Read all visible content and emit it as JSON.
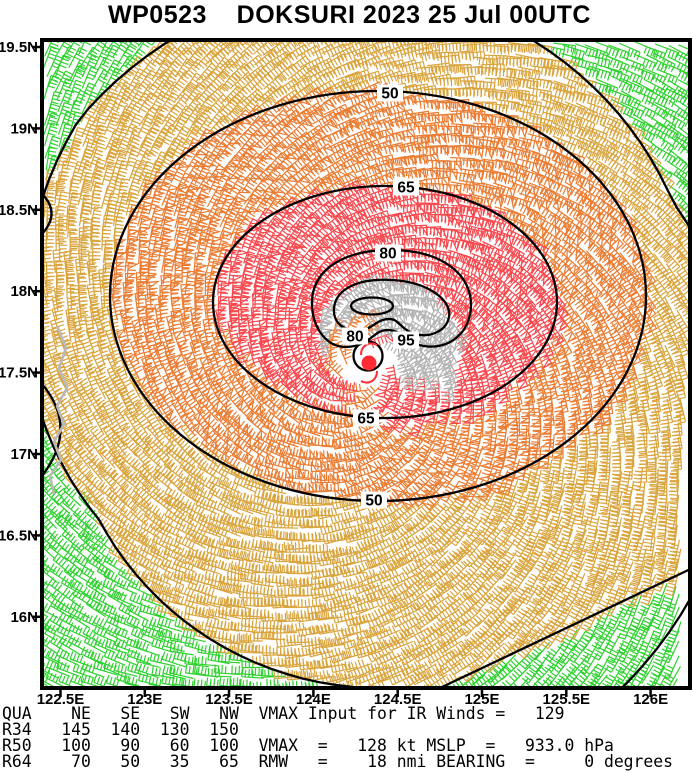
{
  "title": "WP0523    DOKSURI 2023 25 Jul 00UTC",
  "info_lines": [
    "QUA    NE   SE   SW   NW  VMAX Input for IR Winds =   129",
    "R34   145  140  130  150",
    "R50   100   90   60  100  VMAX  =   128 kt MSLP  =   933.0 hPa",
    "R64    70   50   35   65  RMW   =    18 nmi BEARING  =     0 degrees"
  ],
  "axes": {
    "lat_labels": [
      "19.5N",
      "19N",
      "18.5N",
      "18N",
      "17.5N",
      "17N",
      "16.5N",
      "16N"
    ],
    "lon_labels": [
      "122.5E",
      "123E",
      "123.5E",
      "124E",
      "124.5E",
      "125E",
      "125.5E",
      "126E"
    ]
  },
  "chart_data": {
    "type": "wind-barb-isotach-analysis-map",
    "storm": {
      "id": "WP0523",
      "name": "DOKSURI",
      "valid": "2023 25 Jul 00UTC"
    },
    "center": {
      "lat": "17.55N",
      "lon": "124.35E"
    },
    "isotach_contours_kt": [
      50,
      65,
      80,
      95
    ],
    "contour_labels": [
      "50",
      "65",
      "80",
      "80",
      "95",
      "65",
      "50"
    ],
    "wind_radii_nmi": {
      "quadrants": [
        "NE",
        "SE",
        "SW",
        "NW"
      ],
      "R34": [
        145,
        140,
        130,
        150
      ],
      "R50": [
        100,
        90,
        60,
        100
      ],
      "R64": [
        70,
        50,
        35,
        65
      ]
    },
    "vmax_input_ir_kt": 129,
    "vmax_kt": 128,
    "mslp_hpa": 933.0,
    "rmw_nmi": 18,
    "bearing_deg": 0,
    "wind_speed_classes": [
      {
        "color_name": "green",
        "hex": "#2fd12f",
        "range_kt": "< 35"
      },
      {
        "color_name": "gold",
        "hex": "#d9a43c",
        "range_kt": "35-50"
      },
      {
        "color_name": "orange",
        "hex": "#ea7d33",
        "range_kt": "50-65"
      },
      {
        "color_name": "red",
        "hex": "#f8494f",
        "range_kt": "65-95"
      },
      {
        "color_name": "gray",
        "hex": "#b3b3b3",
        "range_kt": "> 95"
      }
    ],
    "axis_ranges": {
      "lat": [
        "16N",
        "19.5N"
      ],
      "lon": [
        "122.5E",
        "126E"
      ]
    },
    "colors": {
      "contour": "#000000",
      "coastline": "#b9b9b9",
      "center_dot": "#ff2b33",
      "frame": "#000000"
    }
  }
}
